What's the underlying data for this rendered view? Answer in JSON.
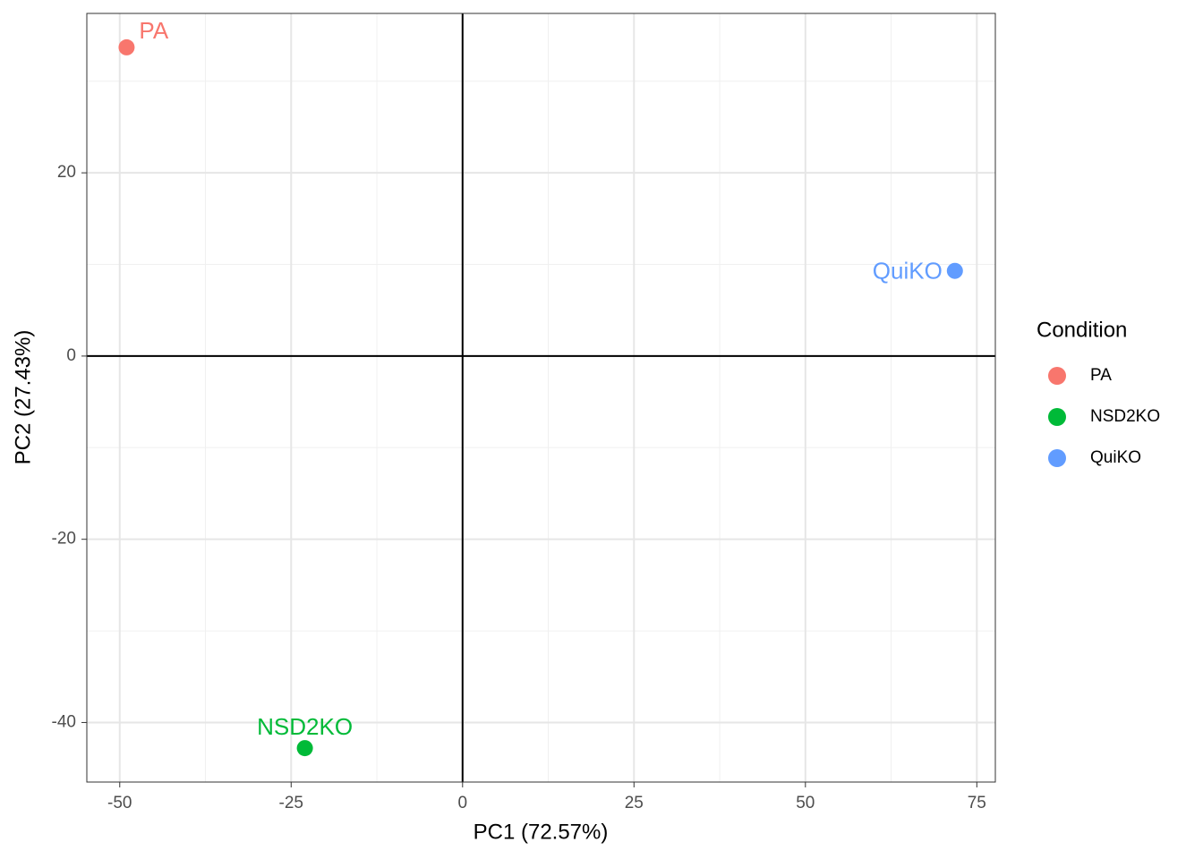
{
  "chart_data": {
    "type": "scatter",
    "x_label": "PC1 (72.57%)",
    "y_label": "PC2 (27.43%)",
    "legend_title": "Condition",
    "legend_position": "right",
    "xlim": [
      -54.8,
      77.7
    ],
    "ylim": [
      -46.5,
      37.4
    ],
    "xticks": [
      -50,
      -25,
      0,
      25,
      50,
      75
    ],
    "yticks": [
      -40,
      -20,
      0,
      20
    ],
    "grid": true,
    "hline": 0,
    "vline": 0,
    "series": [
      {
        "name": "PA",
        "color": "#F8766D",
        "x": [
          -49
        ],
        "values": [
          33.7
        ]
      },
      {
        "name": "NSD2KO",
        "color": "#00BA38",
        "x": [
          -23
        ],
        "values": [
          -42.8
        ]
      },
      {
        "name": "QuiKO",
        "color": "#619CFF",
        "x": [
          71.8
        ],
        "values": [
          9.3
        ]
      }
    ]
  }
}
